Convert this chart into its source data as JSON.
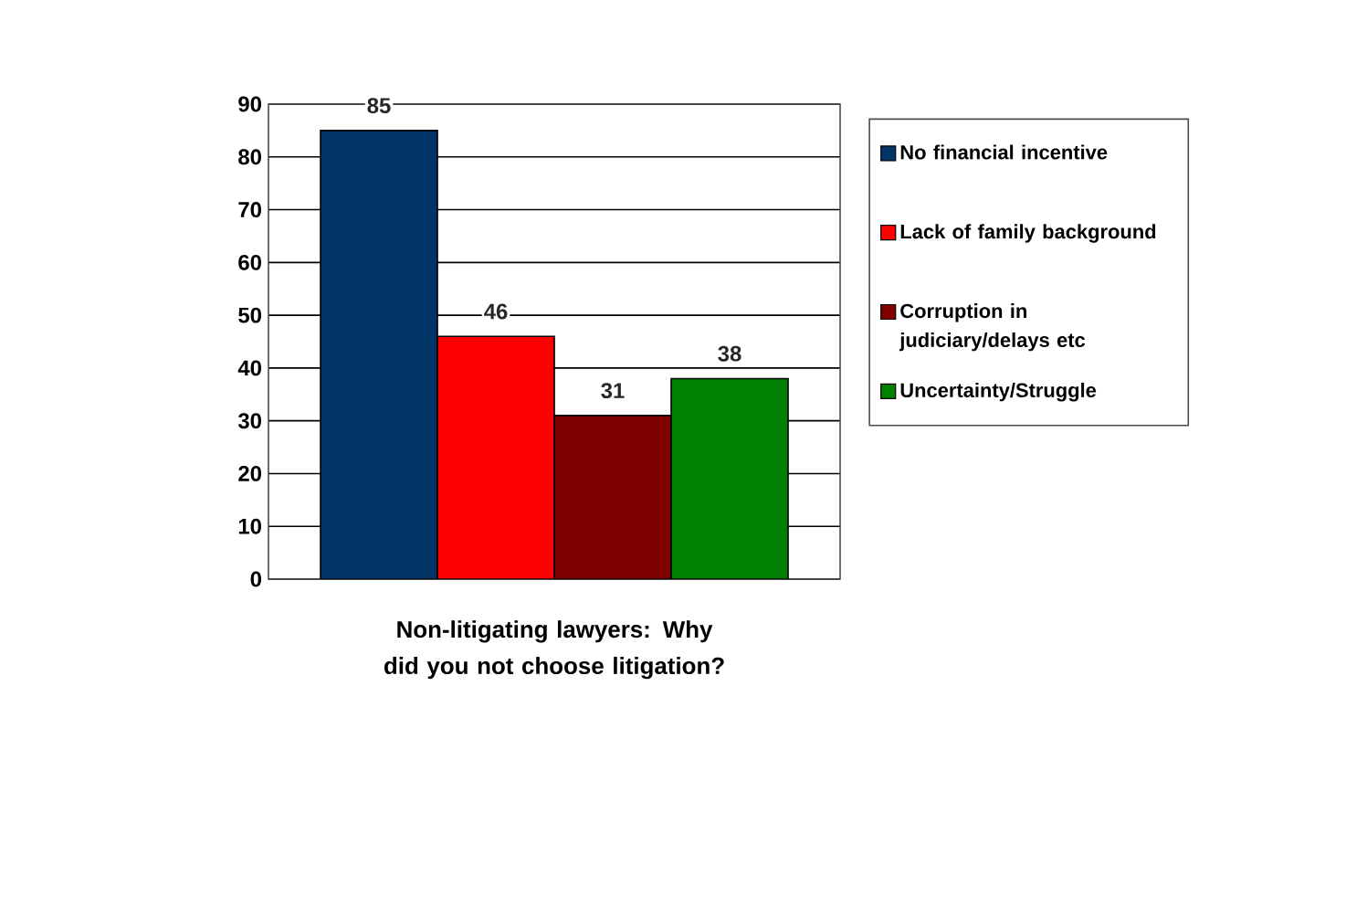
{
  "chart_data": {
    "type": "bar",
    "xlabel": "Non-litigating lawyers: Why did you not choose litigation?",
    "categories": [
      null
    ],
    "series": [
      {
        "name": "No financial incentive",
        "color": "#003366",
        "values": [
          85
        ]
      },
      {
        "name": "Lack of family background",
        "color": "#ff0000",
        "values": [
          46
        ]
      },
      {
        "name": "Corruption in judiciary/delays etc",
        "color": "#800000",
        "values": [
          31
        ]
      },
      {
        "name": "Uncertainty/Struggle",
        "color": "#008000",
        "values": [
          38
        ]
      }
    ],
    "ylim": [
      0,
      90
    ],
    "yticks": [
      0,
      10,
      20,
      30,
      40,
      50,
      60,
      70,
      80,
      90
    ],
    "grid": "y",
    "legend": "right",
    "data_labels": true
  }
}
